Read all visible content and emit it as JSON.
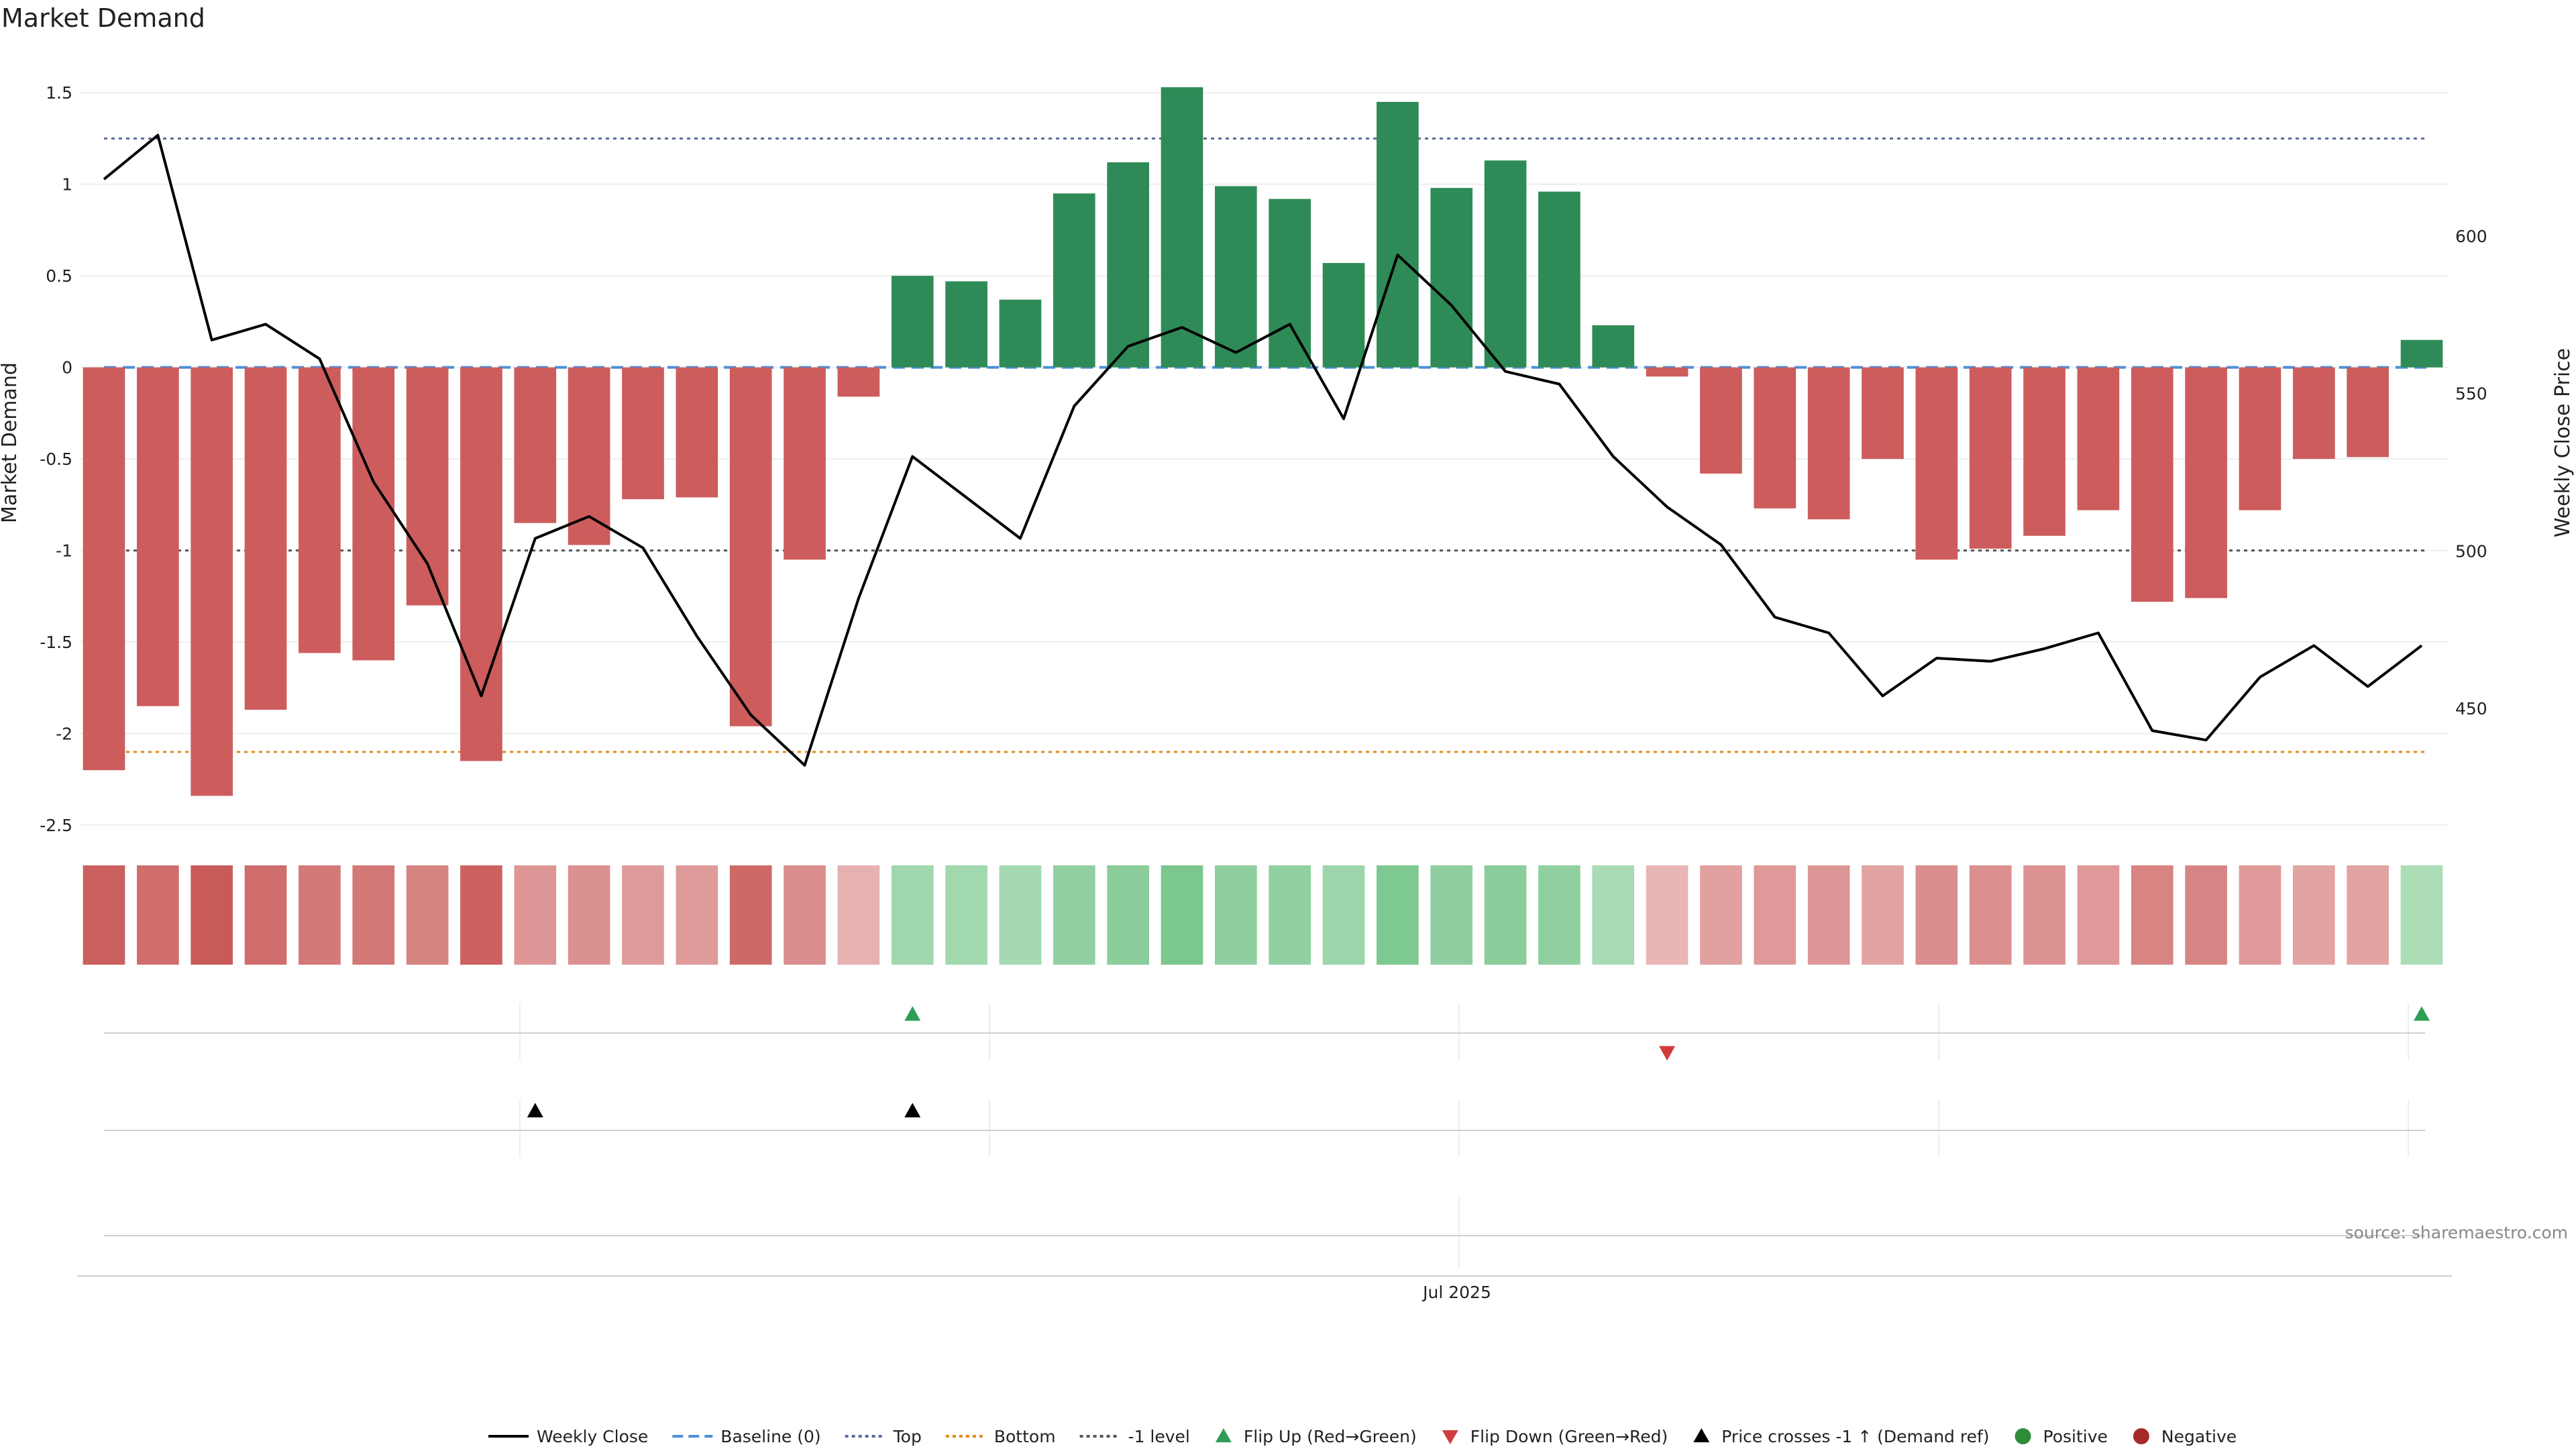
{
  "chart_data": {
    "type": "bar",
    "title": "Market Demand",
    "ylabel": "Market Demand",
    "y2label": "Weekly Close Price",
    "ylim": [
      -2.5,
      1.75
    ],
    "y_ticks": [
      "1.5",
      "1",
      "0.5",
      "0",
      "-0.5",
      "-1",
      "-1.5",
      "-2",
      "-2.5"
    ],
    "y_tick_values": [
      1.5,
      1,
      0.5,
      0,
      -0.5,
      -1,
      -1.5,
      -2,
      -2.5
    ],
    "y2lim": [
      413,
      660
    ],
    "y2_ticks": [
      "600",
      "550",
      "500",
      "450"
    ],
    "y2_tick_values": [
      600,
      550,
      500,
      450
    ],
    "x_ticks": [
      "Jul 2025"
    ],
    "source": "source: sharemaestro.com",
    "demand": [
      -2.2,
      -1.85,
      -2.34,
      -1.87,
      -1.56,
      -1.6,
      -1.3,
      -2.15,
      -0.85,
      -0.97,
      -0.72,
      -0.71,
      -1.96,
      -1.05,
      -0.16,
      0.5,
      0.47,
      0.37,
      0.95,
      1.12,
      1.53,
      0.99,
      0.92,
      0.57,
      1.45,
      0.98,
      1.13,
      0.96,
      0.23,
      -0.05,
      -0.58,
      -0.77,
      -0.83,
      -0.5,
      -1.05,
      -0.99,
      -0.92,
      -0.78,
      -1.28,
      -1.26,
      -0.78,
      -0.5,
      -0.49,
      0.15
    ],
    "weekly_close": [
      618,
      632,
      567,
      572,
      561,
      522,
      496,
      454,
      504,
      511,
      501,
      473,
      448,
      432,
      485,
      530,
      517,
      504,
      546,
      565,
      571,
      563,
      572,
      542,
      594,
      578,
      557,
      553,
      530,
      514,
      502,
      479,
      474,
      454,
      466,
      465,
      469,
      474,
      443,
      440,
      460,
      470,
      457,
      470
    ],
    "series": [
      {
        "name": "Weekly Close",
        "axis": "right",
        "color": "#000000"
      },
      {
        "name": "Market Demand",
        "axis": "left",
        "positive_color": "#2e8b57",
        "negative_color": "#cd5c5c"
      }
    ],
    "reference_lines": [
      {
        "name": "Baseline (0)",
        "value": 0,
        "color": "#4a90d9",
        "style": "dashed"
      },
      {
        "name": "Top",
        "value": 1.25,
        "color": "#5a6b9a",
        "style": "dotted"
      },
      {
        "name": "Bottom",
        "value": -2.1,
        "color": "#e08a1e",
        "style": "dotted"
      },
      {
        "name": "-1 level",
        "value": -1,
        "color": "#555555",
        "style": "dotted"
      }
    ],
    "flip_up_weeks": [
      15,
      43
    ],
    "flip_down_weeks": [
      29
    ],
    "price_cross_weeks": [
      8,
      15
    ],
    "legend": [
      {
        "label": "Weekly Close",
        "kind": "line",
        "color": "#000000"
      },
      {
        "label": "Baseline (0)",
        "kind": "dashed",
        "color": "#4a90d9"
      },
      {
        "label": "Top",
        "kind": "dotted",
        "color": "#5a6b9a"
      },
      {
        "label": "Bottom",
        "kind": "dotted",
        "color": "#e08a1e"
      },
      {
        "label": "-1 level",
        "kind": "dotted",
        "color": "#555555"
      },
      {
        "label": "Flip Up (Red→Green)",
        "kind": "tri-up",
        "color": "#2e9e55"
      },
      {
        "label": "Flip Down (Green→Red)",
        "kind": "tri-down",
        "color": "#d23b3b"
      },
      {
        "label": "Price crosses -1 ↑ (Demand ref)",
        "kind": "tri-up",
        "color": "#000000"
      },
      {
        "label": "Positive",
        "kind": "dot",
        "color": "#2e8b3a"
      },
      {
        "label": "Negative",
        "kind": "dot",
        "color": "#a52a2a"
      }
    ]
  }
}
